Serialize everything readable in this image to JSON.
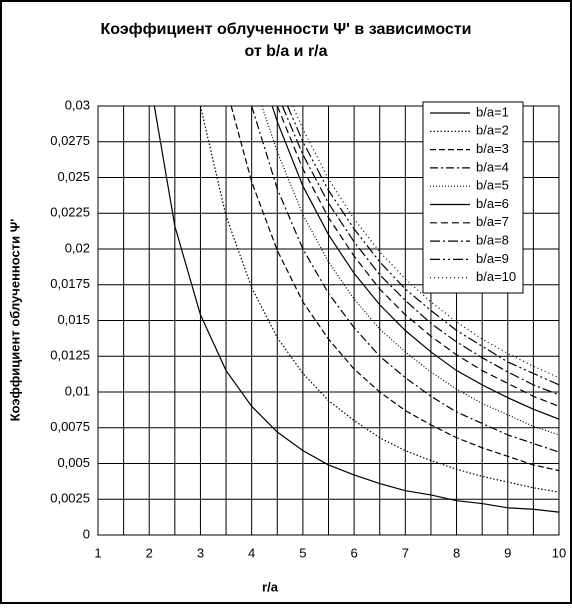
{
  "chart_data": {
    "type": "line",
    "title": [
      "Коэффициент  облученности Ψ' в зависимости",
      "от b/a  и  r/a"
    ],
    "xlabel": "r/a",
    "ylabel": "Коэффициент облученности Ψ'",
    "xlim": [
      1,
      10
    ],
    "xticks": [
      1,
      2,
      3,
      4,
      5,
      6,
      7,
      8,
      9,
      10
    ],
    "ylim": [
      0,
      0.03
    ],
    "yticks": [
      0,
      {
        "value": 0.0025,
        "label": "0,0025"
      },
      {
        "value": 0.005,
        "label": "0,005"
      },
      {
        "value": 0.0075,
        "label": "0,0075"
      },
      {
        "value": 0.01,
        "label": "0,01"
      },
      {
        "value": 0.0125,
        "label": "0,0125"
      },
      {
        "value": 0.015,
        "label": "0,015"
      },
      {
        "value": 0.0175,
        "label": "0,0175"
      },
      {
        "value": 0.02,
        "label": "0,02"
      },
      {
        "value": 0.0225,
        "label": "0,0225"
      },
      {
        "value": 0.025,
        "label": "0,025"
      },
      {
        "value": 0.0275,
        "label": "0,0275"
      },
      {
        "value": 0.03,
        "label": "0,03"
      }
    ],
    "grid": true,
    "legend": "upper right",
    "series": [
      {
        "name": "b/a=1",
        "color": "#000000",
        "dash": "none",
        "x": [
          2.1,
          2.5,
          3,
          3.5,
          4,
          4.5,
          5,
          5.5,
          6,
          6.5,
          7,
          7.5,
          8,
          8.5,
          9,
          9.5,
          10
        ],
        "values": [
          0.03,
          0.0216,
          0.0154,
          0.0115,
          0.009,
          0.0072,
          0.0059,
          0.0049,
          0.0042,
          0.0036,
          0.0031,
          0.0028,
          0.0024,
          0.0022,
          0.0019,
          0.0018,
          0.0016
        ]
      },
      {
        "name": "b/a=2",
        "color": "#000000",
        "dash": "1.5 2",
        "x": [
          3,
          3.5,
          4,
          4.5,
          5,
          5.5,
          6,
          6.5,
          7,
          7.5,
          8,
          8.5,
          9,
          9.5,
          10
        ],
        "values": [
          0.03,
          0.0223,
          0.0173,
          0.0138,
          0.0113,
          0.0094,
          0.008,
          0.0068,
          0.0059,
          0.0052,
          0.0046,
          0.0041,
          0.0037,
          0.0033,
          0.003
        ]
      },
      {
        "name": "b/a=3",
        "color": "#000000",
        "dash": "6 3",
        "x": [
          3.6,
          4,
          4.5,
          5,
          5.5,
          6,
          6.5,
          7,
          7.5,
          8,
          8.5,
          9,
          9.5,
          10
        ],
        "values": [
          0.03,
          0.0247,
          0.0199,
          0.0163,
          0.0137,
          0.0116,
          0.01,
          0.0087,
          0.0077,
          0.0068,
          0.0061,
          0.0055,
          0.0049,
          0.0045
        ]
      },
      {
        "name": "b/a=4",
        "color": "#000000",
        "dash": "8 3 2 3",
        "x": [
          4,
          4.5,
          5,
          5.5,
          6,
          6.5,
          7,
          7.5,
          8,
          8.5,
          9,
          9.5,
          10
        ],
        "values": [
          0.03,
          0.0242,
          0.02,
          0.0169,
          0.0145,
          0.0125,
          0.011,
          0.0097,
          0.0086,
          0.0078,
          0.007,
          0.0064,
          0.0058
        ]
      },
      {
        "name": "b/a=5",
        "color": "#000000",
        "dash": "1 2",
        "x": [
          4.2,
          4.5,
          5,
          5.5,
          6,
          6.5,
          7,
          7.5,
          8,
          8.5,
          9,
          9.5,
          10
        ],
        "values": [
          0.03,
          0.0268,
          0.0224,
          0.0191,
          0.0165,
          0.0144,
          0.0128,
          0.0114,
          0.0102,
          0.0092,
          0.0084,
          0.0076,
          0.007
        ]
      },
      {
        "name": "b/a=6",
        "color": "#000000",
        "dash": "none",
        "x": [
          4.4,
          4.5,
          5,
          5.5,
          6,
          6.5,
          7,
          7.5,
          8,
          8.5,
          9,
          9.5,
          10
        ],
        "values": [
          0.03,
          0.0289,
          0.0244,
          0.021,
          0.0183,
          0.0161,
          0.0143,
          0.0128,
          0.0115,
          0.0105,
          0.0096,
          0.0088,
          0.0081
        ]
      },
      {
        "name": "b/a=7",
        "color": "#000000",
        "dash": "7 4",
        "x": [
          4.5,
          5,
          5.5,
          6,
          6.5,
          7,
          7.5,
          8,
          8.5,
          9,
          9.5,
          10
        ],
        "values": [
          0.03,
          0.0256,
          0.0222,
          0.0195,
          0.0172,
          0.0154,
          0.0139,
          0.0126,
          0.0115,
          0.0106,
          0.0097,
          0.009
        ]
      },
      {
        "name": "b/a=8",
        "color": "#000000",
        "dash": "10 3 2 3",
        "x": [
          4.6,
          5,
          5.5,
          6,
          6.5,
          7,
          7.5,
          8,
          8.5,
          9,
          9.5,
          10
        ],
        "values": [
          0.03,
          0.0266,
          0.0232,
          0.0205,
          0.0182,
          0.0164,
          0.0148,
          0.0135,
          0.0124,
          0.0114,
          0.0105,
          0.0098
        ]
      },
      {
        "name": "b/a=9",
        "color": "#000000",
        "dash": "10 3 2 3 2 3",
        "x": [
          4.7,
          5,
          5.5,
          6,
          6.5,
          7,
          7.5,
          8,
          8.5,
          9,
          9.5,
          10
        ],
        "values": [
          0.03,
          0.0275,
          0.0241,
          0.0214,
          0.0191,
          0.0172,
          0.0157,
          0.0143,
          0.0132,
          0.0121,
          0.0113,
          0.0105
        ]
      },
      {
        "name": "b/a=10",
        "color": "#000000",
        "dash": "1 3",
        "x": [
          4.8,
          5,
          5.5,
          6,
          6.5,
          7,
          7.5,
          8,
          8.5,
          9,
          9.5,
          10
        ],
        "values": [
          0.03,
          0.0284,
          0.0249,
          0.0221,
          0.0198,
          0.0179,
          0.0163,
          0.0149,
          0.0137,
          0.0127,
          0.0118,
          0.011
        ]
      }
    ]
  }
}
